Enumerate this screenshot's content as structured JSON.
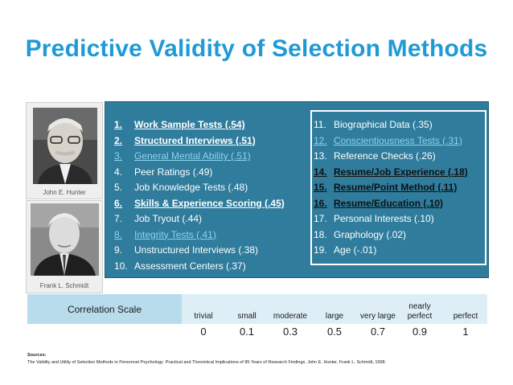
{
  "title": "Predictive Validity of Selection Methods",
  "photos": [
    {
      "caption": "John E. Hunter"
    },
    {
      "caption": "Frank L. Schmidt"
    }
  ],
  "left_list": [
    {
      "num": "1.",
      "text": "Work Sample Tests (.54)",
      "style": "bold-underline"
    },
    {
      "num": "2.",
      "text": "Structured Interviews (.51)",
      "style": "bold-underline"
    },
    {
      "num": "3.",
      "text": "General Mental Ability (.51)",
      "style": "highlight"
    },
    {
      "num": "4.",
      "text": "Peer Ratings (.49)",
      "style": "normal"
    },
    {
      "num": "5.",
      "text": "Job Knowledge Tests (.48)",
      "style": "normal"
    },
    {
      "num": "6.",
      "text": "Skills & Experience Scoring (.45)",
      "style": "bold-underline"
    },
    {
      "num": "7.",
      "text": "Job Tryout (.44)",
      "style": "normal"
    },
    {
      "num": "8.",
      "text": "Integrity Tests (.41)",
      "style": "highlight"
    },
    {
      "num": "9.",
      "text": "Unstructured Interviews (.38)",
      "style": "normal"
    },
    {
      "num": "10.",
      "text": "Assessment Centers (.37)",
      "style": "normal"
    }
  ],
  "right_list": [
    {
      "num": "11.",
      "text": "Biographical Data (.35)",
      "style": "normal"
    },
    {
      "num": "12.",
      "text": "Conscientiousness Tests (.31)",
      "style": "highlight"
    },
    {
      "num": "13.",
      "text": "Reference Checks (.26)",
      "style": "normal"
    },
    {
      "num": "14.",
      "text": "Resume/Job Experience (.18)",
      "style": "dark"
    },
    {
      "num": "15.",
      "text": "Resume/Point Method (.11)",
      "style": "dark"
    },
    {
      "num": "16.",
      "text": "Resume/Education (.10)",
      "style": "dark"
    },
    {
      "num": "17.",
      "text": "Personal Interests (.10)",
      "style": "normal"
    },
    {
      "num": "18.",
      "text": "Graphology (.02)",
      "style": "normal"
    },
    {
      "num": "19.",
      "text": "Age (-.01)",
      "style": "normal"
    }
  ],
  "correlation_scale": {
    "label": "Correlation Scale",
    "headers": [
      "trivial",
      "small",
      "moderate",
      "large",
      "very large",
      "nearly perfect",
      "perfect"
    ],
    "values": [
      "0",
      "0.1",
      "0.3",
      "0.5",
      "0.7",
      "0.9",
      "1"
    ]
  },
  "sources": {
    "label": "Sources:",
    "text": "The Validity and Utility of Selection Methods in Personnel Psychology: Practical and Theoretical Implications of 85 Years of Research Findings. John E. Hunter, Frank L. Schmidt, 1998."
  },
  "colors": {
    "title": "#1e9ad6",
    "panel": "#2f7c9c",
    "highlight": "#8ed3ee",
    "scale_label_bg": "#b8dcec",
    "scale_row_bg": "#ddeef6"
  }
}
